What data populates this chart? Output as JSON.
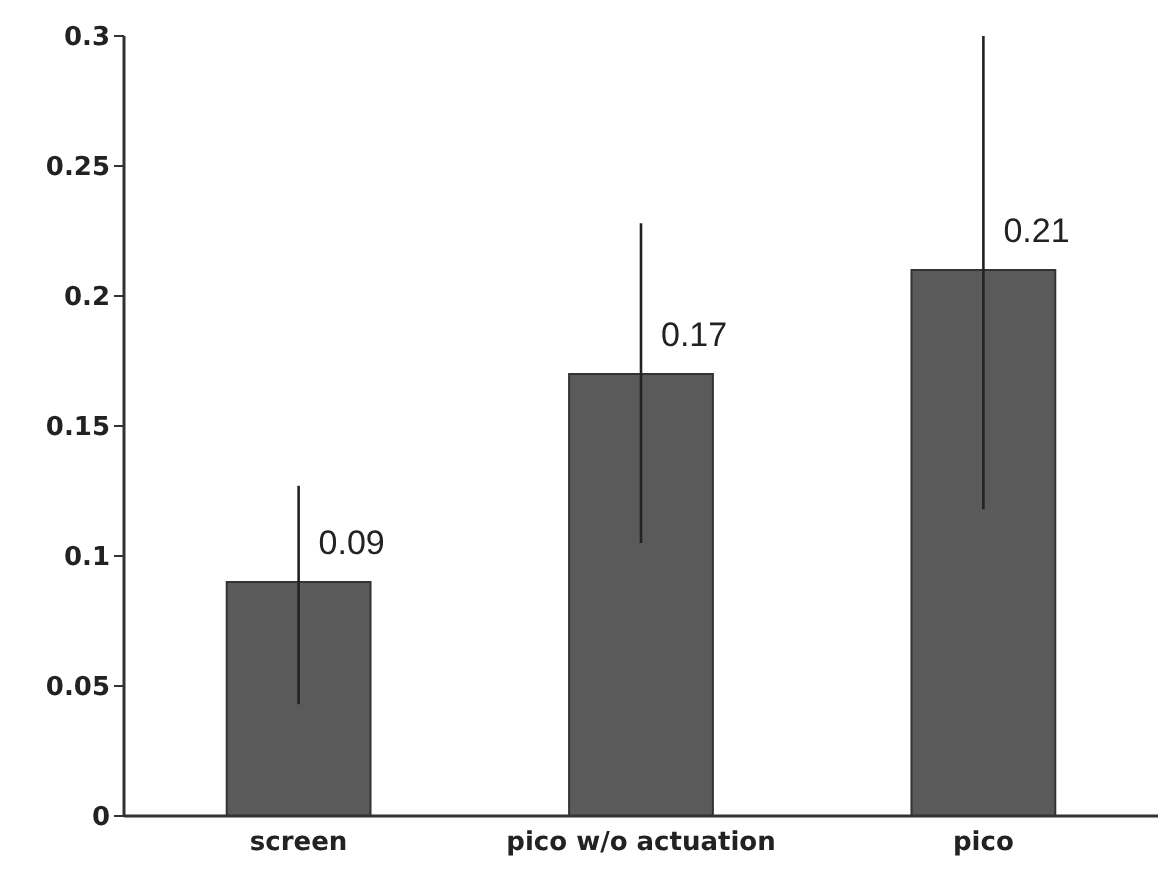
{
  "chart_data": {
    "type": "bar",
    "categories": [
      "screen",
      "pico w/o actuation",
      "pico"
    ],
    "values": [
      0.09,
      0.17,
      0.21
    ],
    "color": "#5a5a5a",
    "errors": [
      [
        0.043,
        0.127
      ],
      [
        0.105,
        0.228
      ],
      [
        0.118,
        0.3
      ]
    ],
    "data_labels": true,
    "ylim": [
      0,
      0.3
    ],
    "yticks": [
      0,
      0.05,
      0.1,
      0.15,
      0.2,
      0.25,
      0.3
    ],
    "grid": false
  }
}
